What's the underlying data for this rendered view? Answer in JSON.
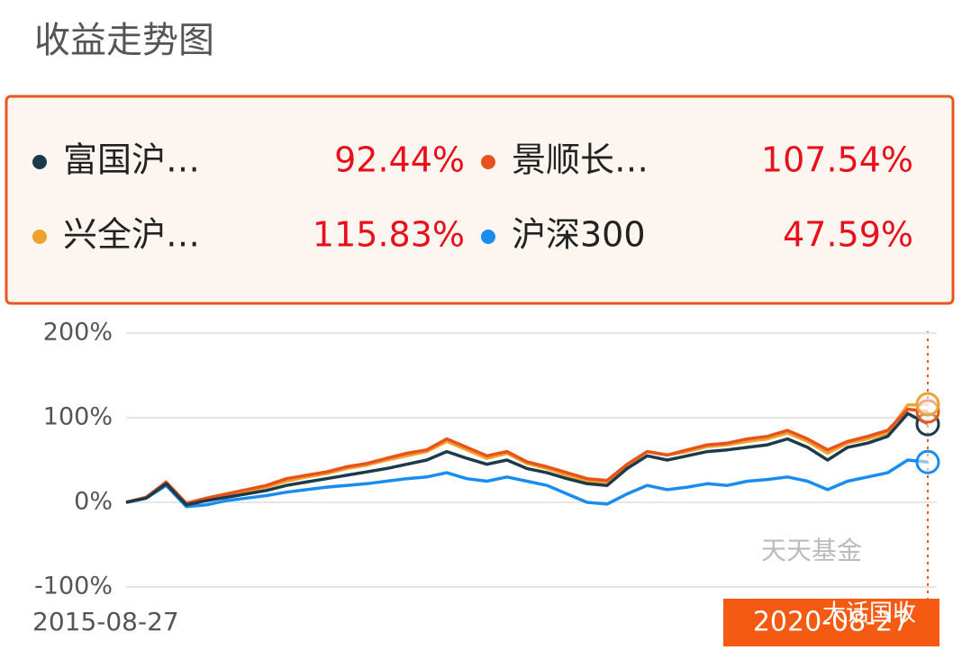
{
  "chart_data": {
    "type": "line",
    "title": "收益走势图",
    "x": [
      "2015-08-27",
      null,
      null,
      null,
      null,
      null,
      null,
      null,
      null,
      null,
      null,
      null,
      null,
      null,
      null,
      null,
      null,
      null,
      null,
      null,
      null,
      null,
      null,
      null,
      null,
      null,
      null,
      null,
      null,
      null,
      null,
      null,
      null,
      null,
      null,
      null,
      null,
      null,
      null,
      null,
      "2020-08-27"
    ],
    "series": [
      {
        "name": "富国沪…",
        "color": "#1c3a4a",
        "total_return": {
          "value": 92.44,
          "label": "92.44%"
        },
        "values": [
          0,
          5,
          22,
          -3,
          2,
          6,
          10,
          14,
          20,
          24,
          28,
          32,
          36,
          40,
          45,
          50,
          60,
          52,
          45,
          50,
          40,
          35,
          28,
          22,
          20,
          40,
          55,
          50,
          55,
          60,
          62,
          65,
          68,
          75,
          65,
          50,
          65,
          70,
          78,
          105,
          92.44
        ]
      },
      {
        "name": "景顺长…",
        "color": "#e8531c",
        "total_return": {
          "value": 107.54,
          "label": "107.54%"
        },
        "values": [
          0,
          6,
          24,
          -1,
          5,
          10,
          15,
          20,
          28,
          32,
          36,
          42,
          46,
          52,
          58,
          62,
          75,
          65,
          55,
          60,
          48,
          42,
          35,
          28,
          26,
          45,
          60,
          56,
          62,
          68,
          70,
          75,
          78,
          85,
          75,
          62,
          72,
          78,
          85,
          110,
          107.54
        ]
      },
      {
        "name": "兴全沪…",
        "color": "#f0a22e",
        "total_return": {
          "value": 115.83,
          "label": "115.83%"
        },
        "values": [
          0,
          6,
          23,
          -2,
          4,
          8,
          13,
          18,
          25,
          30,
          34,
          40,
          44,
          50,
          55,
          60,
          72,
          62,
          52,
          58,
          46,
          40,
          32,
          25,
          24,
          44,
          60,
          56,
          60,
          66,
          68,
          72,
          75,
          82,
          72,
          58,
          70,
          75,
          82,
          115,
          115.83
        ]
      },
      {
        "name": "沪深300",
        "color": "#1a8cf0",
        "total_return": {
          "value": 47.59,
          "label": "47.59%"
        },
        "values": [
          0,
          5,
          20,
          -5,
          -3,
          2,
          5,
          8,
          12,
          15,
          18,
          20,
          22,
          25,
          28,
          30,
          35,
          28,
          25,
          30,
          25,
          20,
          10,
          0,
          -2,
          10,
          20,
          15,
          18,
          22,
          20,
          25,
          27,
          30,
          25,
          15,
          25,
          30,
          35,
          50,
          47.59
        ]
      }
    ],
    "ylim": [
      -100,
      200
    ],
    "yticks": [
      {
        "value": 200,
        "label": "200%"
      },
      {
        "value": 100,
        "label": "100%"
      },
      {
        "value": 0,
        "label": "0%"
      },
      {
        "value": -100,
        "label": "-100%"
      }
    ],
    "grid": true,
    "watermark": "天天基金",
    "badge": "大话国收"
  }
}
